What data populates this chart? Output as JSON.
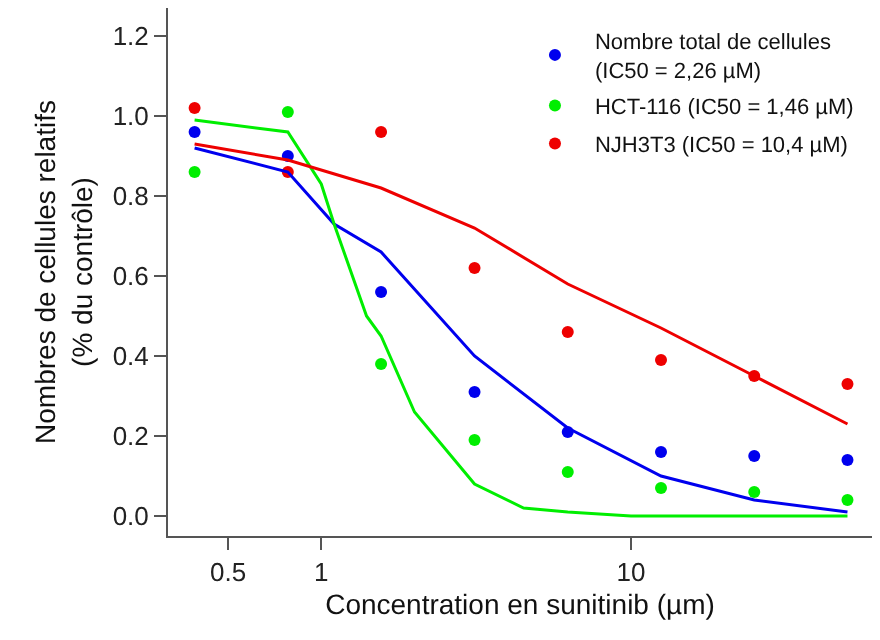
{
  "chart_data": {
    "type": "scatter",
    "xlabel": "Concentration en sunitinib (µm)",
    "ylabel": "Nombres de cellules relatifs\n(% du contrôle)",
    "log": "x",
    "xlim": [
      0.32,
      60
    ],
    "xticks": [
      0.5,
      1,
      10
    ],
    "ylim": [
      -0.05,
      1.27
    ],
    "yticks": [
      {
        "value": 0,
        "label": "0.0"
      },
      0.2,
      0.4,
      0.6,
      0.8,
      {
        "value": 1,
        "label": "1.0"
      },
      1.2
    ],
    "legend": "top right",
    "series": [
      {
        "name": "Nombre total de cellules\n(IC50 = 2,26 µM)",
        "color": "#0000ee",
        "marker": "circle",
        "x": [
          0.39,
          0.78,
          1.56,
          3.125,
          6.25,
          12.5,
          25,
          50
        ],
        "values": [
          0.96,
          0.9,
          0.56,
          0.31,
          0.21,
          0.16,
          0.15,
          0.14
        ]
      },
      {
        "name": "HCT-116 (IC50 = 1,46 µM)",
        "color": "#00ee00",
        "marker": "circle",
        "x": [
          0.39,
          0.78,
          1.56,
          3.125,
          6.25,
          12.5,
          25,
          50
        ],
        "values": [
          0.86,
          1.01,
          0.38,
          0.19,
          0.11,
          0.07,
          0.06,
          0.04
        ]
      },
      {
        "name": "NJH3T3 (IC50 = 10,4 µM)",
        "color": "#ee0000",
        "marker": "circle",
        "x": [
          0.39,
          0.78,
          1.56,
          3.125,
          6.25,
          12.5,
          25,
          50
        ],
        "values": [
          1.02,
          0.86,
          0.96,
          0.62,
          0.46,
          0.39,
          0.35,
          0.33
        ]
      },
      {
        "type": "line",
        "marker": "none",
        "color": "#0000ee",
        "x": [
          0.39,
          0.78,
          1.1,
          1.56,
          3.125,
          6.25,
          12.5,
          25,
          50
        ],
        "values": [
          0.92,
          0.86,
          0.73,
          0.66,
          0.4,
          0.22,
          0.1,
          0.04,
          0.01
        ]
      },
      {
        "type": "line",
        "marker": "none",
        "color": "#00ee00",
        "x": [
          0.39,
          0.78,
          1.0,
          1.1,
          1.4,
          1.56,
          2.0,
          3.125,
          4.5,
          6.25,
          10,
          25,
          50
        ],
        "values": [
          0.99,
          0.96,
          0.83,
          0.73,
          0.5,
          0.45,
          0.26,
          0.08,
          0.02,
          0.01,
          0,
          0,
          0
        ]
      },
      {
        "type": "line",
        "marker": "none",
        "color": "#ee0000",
        "x": [
          0.39,
          0.78,
          1.56,
          3.125,
          6.25,
          12.5,
          25,
          50
        ],
        "values": [
          0.93,
          0.89,
          0.82,
          0.72,
          0.58,
          0.47,
          0.35,
          0.23
        ]
      }
    ]
  }
}
